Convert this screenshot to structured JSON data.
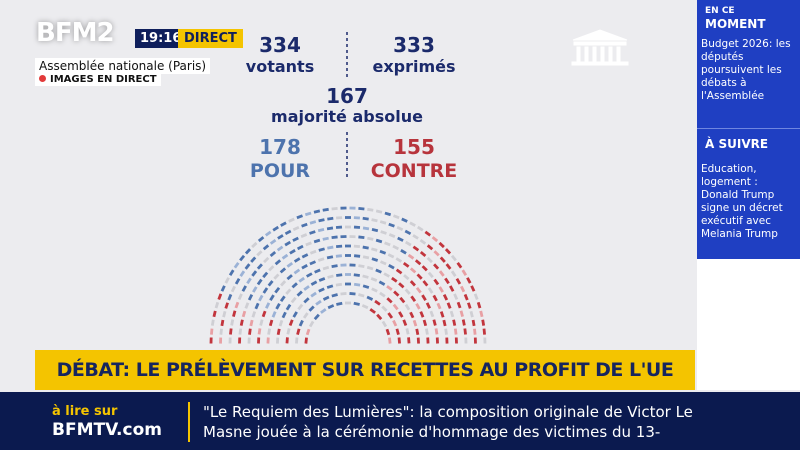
{
  "header": {
    "channel": "BFM2",
    "time": "19:16",
    "live": "DIRECT",
    "location": "Assemblée nationale (Paris)",
    "live_images": "IMAGES EN DIRECT"
  },
  "vote": {
    "voters": {
      "value": 334,
      "label": "votants"
    },
    "cast": {
      "value": 333,
      "label": "exprimés"
    },
    "majority": {
      "value": 167,
      "label": "majorité absolue"
    },
    "for": {
      "value": 178,
      "label": "POUR"
    },
    "against": {
      "value": 155,
      "label": "CONTRE"
    }
  },
  "sidebar": {
    "now_kicker": "EN CE",
    "now_title": "MOMENT",
    "now_text": "Budget 2026: les députés poursuivent les débats à l'Assemblée",
    "next_title": "À SUIVRE",
    "next_text": "Education, logement : Donald Trump signe un décret exécutif avec Melania Trump"
  },
  "banner": "DÉBAT: LE PRÉLÈVEMENT SUR RECETTES AU PROFIT DE L'UE",
  "ticker": {
    "kicker": "à lire sur",
    "site": "BFMTV.com",
    "text": "\"Le Requiem des Lumières\": la composition originale de Victor Le Masne jouée à la cérémonie d'hommage des victimes du 13-"
  }
}
